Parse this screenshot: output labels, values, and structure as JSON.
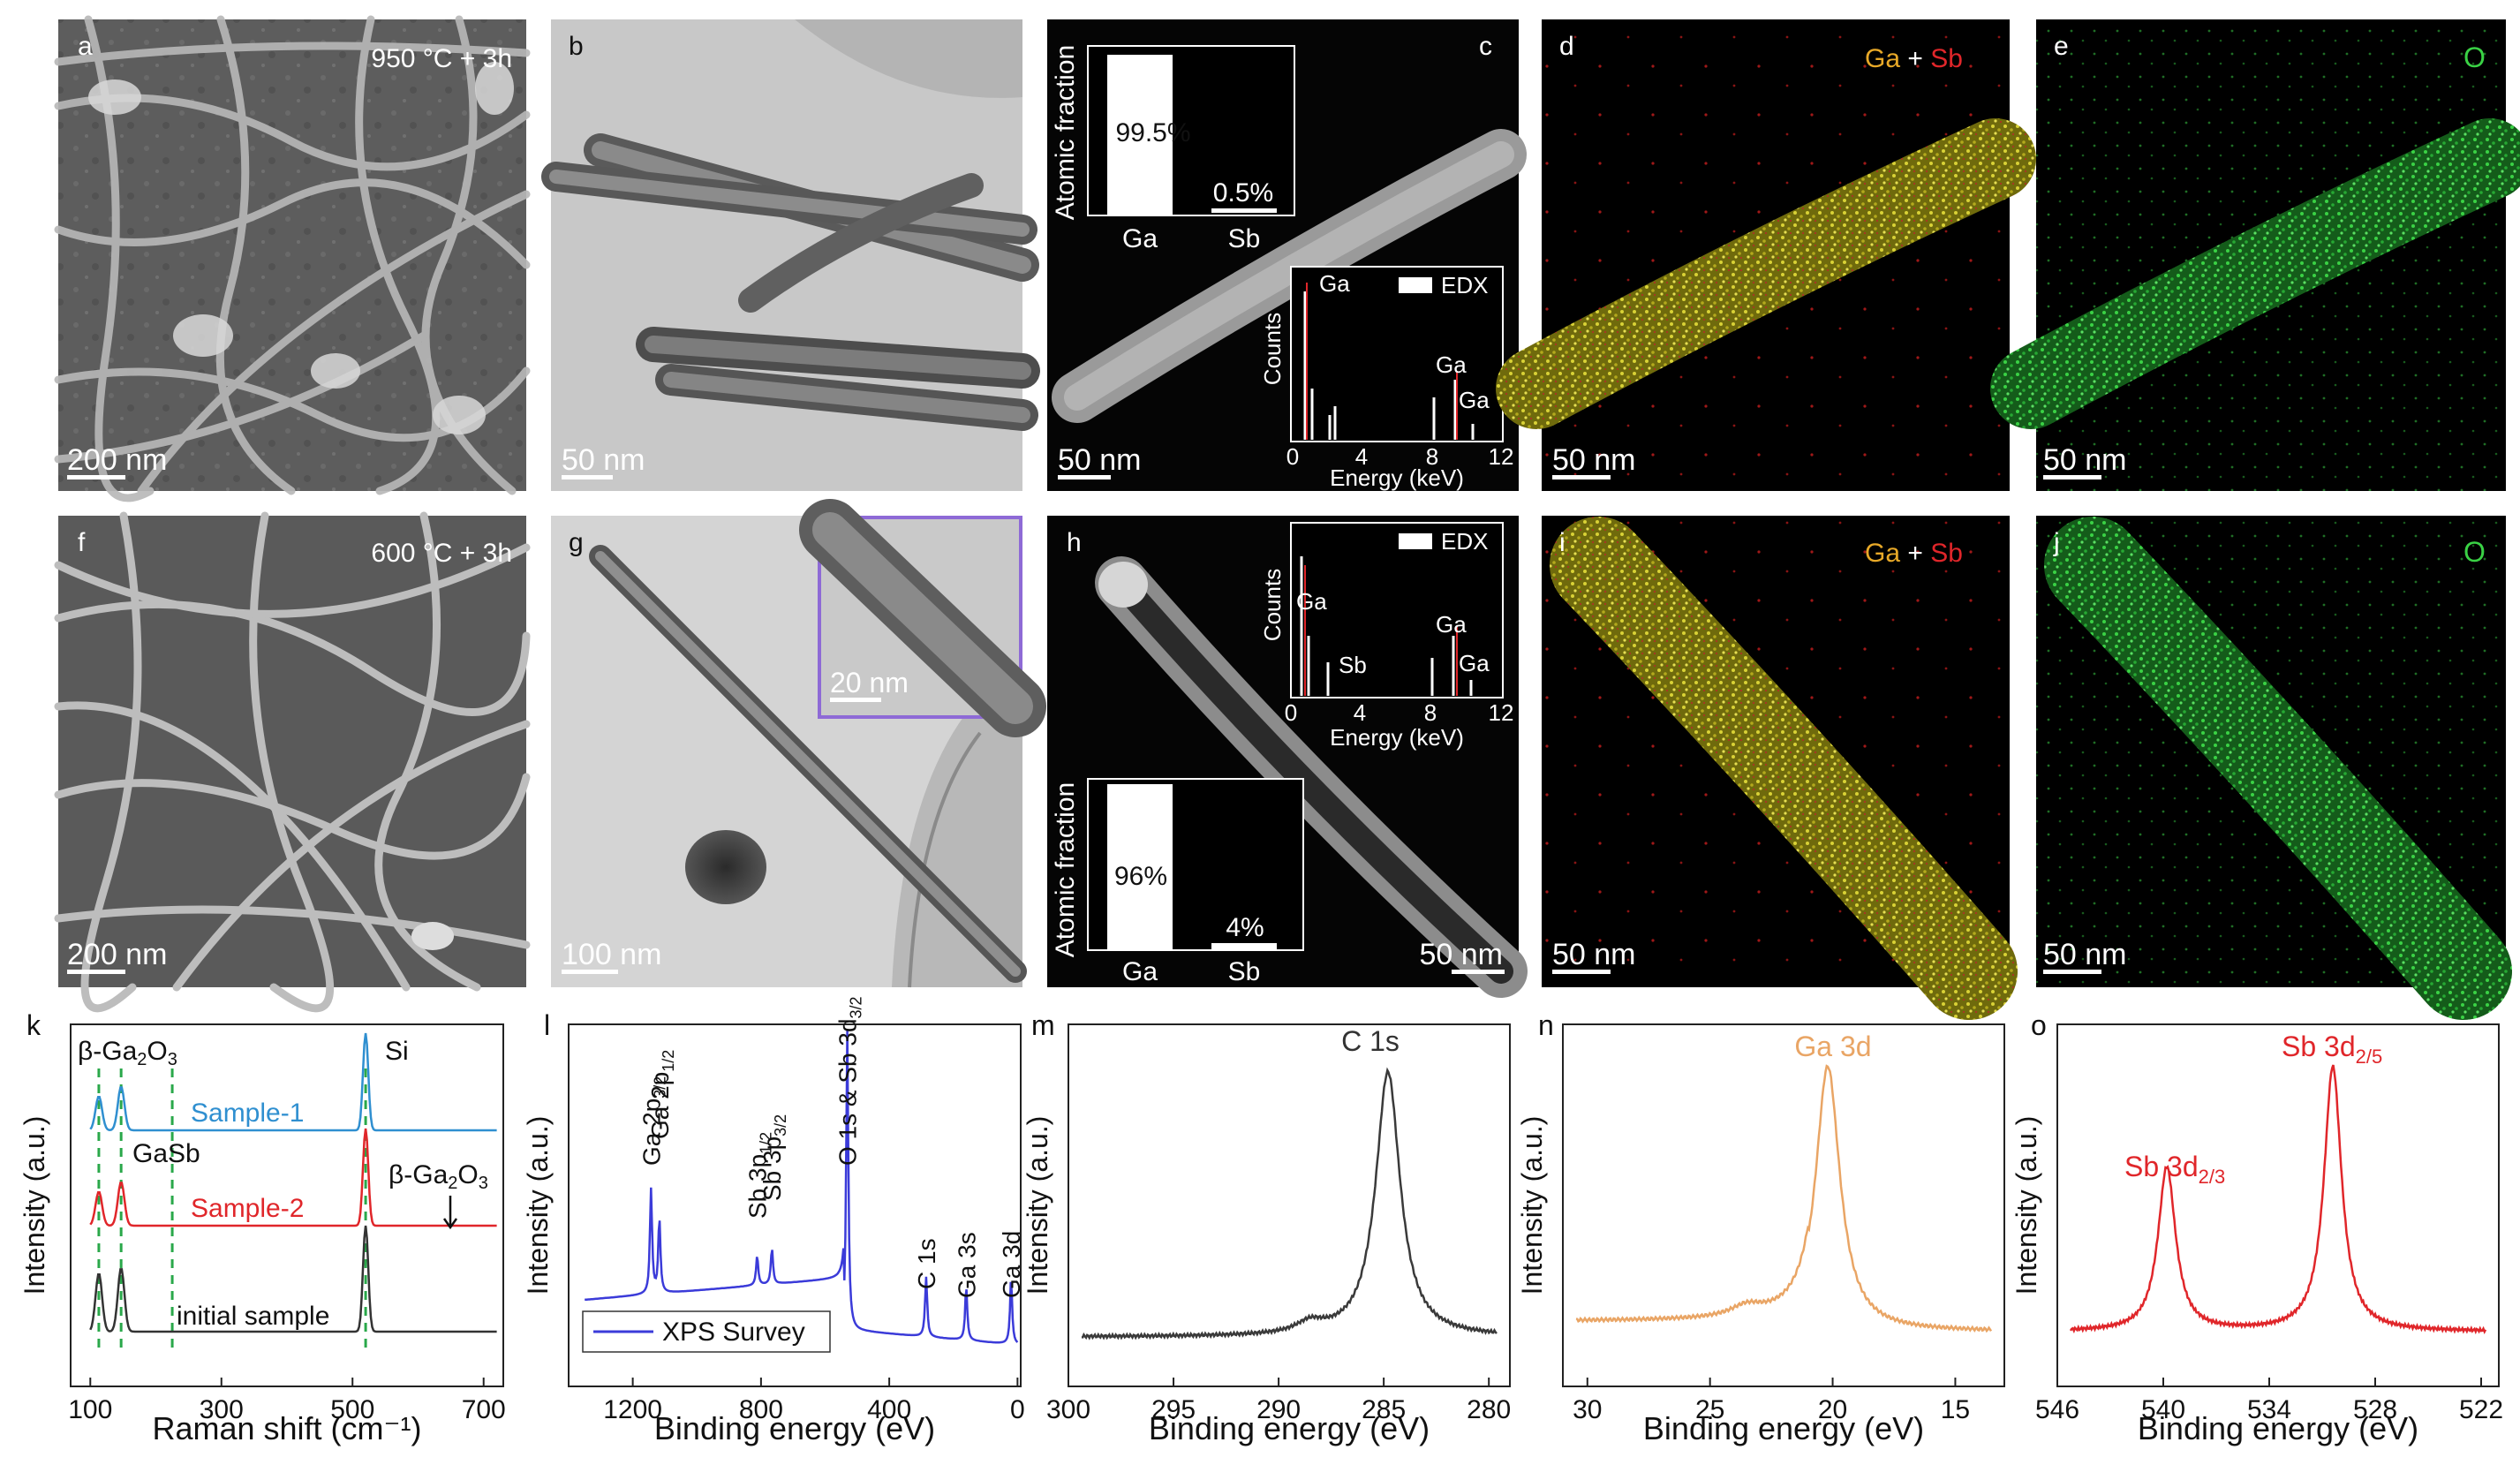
{
  "panels": {
    "a": {
      "letter": "a",
      "condition": "950 °C + 3h",
      "scale": "200 nm"
    },
    "b": {
      "letter": "b",
      "scale": "50 nm"
    },
    "c": {
      "letter": "c",
      "scale": "50 nm",
      "bar_inset": {
        "ylabel": "Atomic fraction",
        "categories": [
          "Ga",
          "Sb"
        ],
        "values": [
          99.5,
          0.5
        ],
        "labels": [
          "99.5%",
          "0.5%"
        ]
      },
      "edx_inset": {
        "legend": "EDX",
        "ylabel": "Counts",
        "xlabel": "Energy (keV)",
        "ticks": [
          "0",
          "4",
          "8",
          "12"
        ],
        "peaks": [
          "Ga",
          "Ga",
          "Ga"
        ]
      }
    },
    "d": {
      "letter": "d",
      "map_el1": "Ga",
      "map_plus": " + ",
      "map_el2": "Sb",
      "scale": "50 nm"
    },
    "e": {
      "letter": "e",
      "map_el": "O",
      "scale": "50 nm"
    },
    "f": {
      "letter": "f",
      "condition": "600 °C + 3h",
      "scale": "200 nm"
    },
    "g": {
      "letter": "g",
      "scale": "100 nm",
      "inset_scale": "20 nm"
    },
    "h": {
      "letter": "h",
      "scale": "50 nm",
      "bar_inset": {
        "ylabel": "Atomic fraction",
        "categories": [
          "Ga",
          "Sb"
        ],
        "values": [
          96,
          4
        ],
        "labels": [
          "96%",
          "4%"
        ]
      },
      "edx_inset": {
        "legend": "EDX",
        "ylabel": "Counts",
        "xlabel": "Energy (keV)",
        "ticks": [
          "0",
          "4",
          "8",
          "12"
        ],
        "peaks": [
          "Ga",
          "Sb",
          "Ga",
          "Ga"
        ]
      }
    },
    "i": {
      "letter": "i",
      "map_el1": "Ga",
      "map_plus": " + ",
      "map_el2": "Sb",
      "scale": "50 nm"
    },
    "j": {
      "letter": "j",
      "map_el": "O",
      "scale": "50 nm"
    }
  },
  "chart_data": [
    {
      "id": "k",
      "letter": "k",
      "type": "line",
      "xlabel": "Raman shift (cm⁻¹)",
      "ylabel": "Intensity (a.u.)",
      "xlim": [
        70,
        730
      ],
      "xticks": [
        100,
        300,
        500,
        700
      ],
      "series": [
        {
          "name": "Sample-1",
          "color": "#2f8fd0",
          "peaks": [
            [
              113,
              0.35
            ],
            [
              147,
              0.45
            ],
            [
              520,
              1.0
            ]
          ]
        },
        {
          "name": "Sample-2",
          "color": "#e0262a",
          "peaks": [
            [
              113,
              0.35
            ],
            [
              147,
              0.45
            ],
            [
              520,
              1.0
            ]
          ]
        },
        {
          "name": "initial sample",
          "color": "#333333",
          "peaks": [
            [
              113,
              0.55
            ],
            [
              147,
              0.6
            ],
            [
              520,
              1.0
            ]
          ]
        }
      ],
      "annotations": {
        "bga2o3": "β-Ga",
        "sub2": "2",
        "o3": "O",
        "sub3": "3",
        "si": "Si",
        "gasb": "GaSb"
      },
      "reference_lines": [
        113,
        147,
        225,
        520
      ]
    },
    {
      "id": "l",
      "letter": "l",
      "type": "line",
      "xlabel": "Binding energy (eV)",
      "ylabel": "Intensity (a.u.)",
      "xlim": [
        1400,
        -10
      ],
      "xticks": [
        1200,
        800,
        400,
        0
      ],
      "series": [
        {
          "name": "XPS Survey",
          "color": "#3b3bd9"
        }
      ],
      "peaks": [
        [
          1143,
          "Ga 2p",
          "3/2"
        ],
        [
          1117,
          "Ga 2p",
          "1/2"
        ],
        [
          812,
          "Sb 3p",
          "1/2"
        ],
        [
          766,
          "Sb 3p",
          "3/2"
        ],
        [
          531,
          "O 1s & Sb 3d",
          "3/2"
        ],
        [
          285,
          "C 1s",
          ""
        ],
        [
          160,
          "Ga 3s",
          ""
        ],
        [
          20,
          "Ga 3d",
          ""
        ]
      ]
    },
    {
      "id": "m",
      "letter": "m",
      "type": "line",
      "xlabel": "Binding energy (eV)",
      "ylabel": "Intensity (a.u.)",
      "xlim": [
        300,
        279
      ],
      "xticks": [
        300,
        295,
        290,
        285,
        280
      ],
      "series": [
        {
          "name": "C 1s",
          "color": "#3a3a3a",
          "peak": 284.8
        }
      ],
      "peak_label": "C 1s"
    },
    {
      "id": "n",
      "letter": "n",
      "type": "line",
      "xlabel": "Binding energy (eV)",
      "ylabel": "Intensity (a.u.)",
      "xlim": [
        31,
        13
      ],
      "xticks": [
        30,
        25,
        20,
        15
      ],
      "series": [
        {
          "name": "Ga 3d",
          "color": "#e9a565",
          "peak": 20.2
        }
      ],
      "peak_label": "Ga 3d"
    },
    {
      "id": "o",
      "letter": "o",
      "type": "line",
      "xlabel": "Binding energy (eV)",
      "ylabel": "Intensity (a.u.)",
      "xlim": [
        546,
        521
      ],
      "xticks": [
        546,
        540,
        534,
        528,
        522
      ],
      "series": [
        {
          "name": "Sb 3d",
          "color": "#e0262a",
          "peaks": [
            539.8,
            530.4
          ]
        }
      ],
      "labels": [
        {
          "text": "Sb 3d",
          "sub": "2/3"
        },
        {
          "text": "Sb 3d",
          "sub": "2/5"
        }
      ]
    }
  ]
}
